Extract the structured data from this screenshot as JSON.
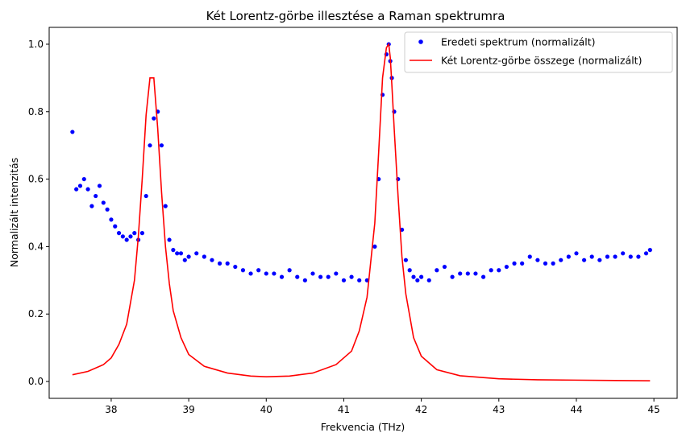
{
  "chart_data": {
    "type": "scatter",
    "title": "Két Lorentz-görbe illesztése a Raman spektrumra",
    "xlabel": "Frekvencia (THz)",
    "ylabel": "Normalizált intenzitás",
    "xlim": [
      37.2,
      45.3
    ],
    "ylim": [
      -0.05,
      1.05
    ],
    "x_ticks": [
      38,
      39,
      40,
      41,
      42,
      43,
      44,
      45
    ],
    "x_tick_labels": [
      "38",
      "39",
      "40",
      "41",
      "42",
      "43",
      "44",
      "45"
    ],
    "y_ticks": [
      0.0,
      0.2,
      0.4,
      0.6,
      0.8,
      1.0
    ],
    "y_tick_labels": [
      "0.0",
      "0.2",
      "0.4",
      "0.6",
      "0.8",
      "1.0"
    ],
    "grid": false,
    "legend_position": "top-right",
    "series": [
      {
        "name": "Eredeti spektrum (normalizált)",
        "kind": "scatter",
        "color": "#0000ff",
        "x": [
          37.5,
          37.55,
          37.6,
          37.65,
          37.7,
          37.75,
          37.8,
          37.85,
          37.9,
          37.95,
          38.0,
          38.05,
          38.1,
          38.15,
          38.2,
          38.25,
          38.3,
          38.35,
          38.4,
          38.45,
          38.5,
          38.55,
          38.6,
          38.65,
          38.7,
          38.75,
          38.8,
          38.85,
          38.9,
          38.95,
          39.0,
          39.1,
          39.2,
          39.3,
          39.4,
          39.5,
          39.6,
          39.7,
          39.8,
          39.9,
          40.0,
          40.1,
          40.2,
          40.3,
          40.4,
          40.5,
          40.6,
          40.7,
          40.8,
          40.9,
          41.0,
          41.1,
          41.2,
          41.3,
          41.4,
          41.45,
          41.5,
          41.55,
          41.58,
          41.6,
          41.62,
          41.65,
          41.7,
          41.75,
          41.8,
          41.85,
          41.9,
          41.95,
          42.0,
          42.1,
          42.2,
          42.3,
          42.4,
          42.5,
          42.6,
          42.7,
          42.8,
          42.9,
          43.0,
          43.1,
          43.2,
          43.3,
          43.4,
          43.5,
          43.6,
          43.7,
          43.8,
          43.9,
          44.0,
          44.1,
          44.2,
          44.3,
          44.4,
          44.5,
          44.6,
          44.7,
          44.8,
          44.9,
          44.95
        ],
        "y": [
          0.74,
          0.57,
          0.58,
          0.6,
          0.57,
          0.52,
          0.55,
          0.58,
          0.53,
          0.51,
          0.48,
          0.46,
          0.44,
          0.43,
          0.42,
          0.43,
          0.44,
          0.42,
          0.44,
          0.55,
          0.7,
          0.78,
          0.8,
          0.7,
          0.52,
          0.42,
          0.39,
          0.38,
          0.38,
          0.36,
          0.37,
          0.38,
          0.37,
          0.36,
          0.35,
          0.35,
          0.34,
          0.33,
          0.32,
          0.33,
          0.32,
          0.32,
          0.31,
          0.33,
          0.31,
          0.3,
          0.32,
          0.31,
          0.31,
          0.32,
          0.3,
          0.31,
          0.3,
          0.3,
          0.4,
          0.6,
          0.85,
          0.97,
          1.0,
          0.95,
          0.9,
          0.8,
          0.6,
          0.45,
          0.36,
          0.33,
          0.31,
          0.3,
          0.31,
          0.3,
          0.33,
          0.34,
          0.31,
          0.32,
          0.32,
          0.32,
          0.31,
          0.33,
          0.33,
          0.34,
          0.35,
          0.35,
          0.37,
          0.36,
          0.35,
          0.35,
          0.36,
          0.37,
          0.38,
          0.36,
          0.37,
          0.36,
          0.37,
          0.37,
          0.38,
          0.37,
          0.37,
          0.38,
          0.39
        ]
      },
      {
        "name": "Két Lorentz-görbe összege (normalizált)",
        "kind": "line",
        "color": "#ff0000",
        "x": [
          37.5,
          37.7,
          37.9,
          38.0,
          38.1,
          38.2,
          38.3,
          38.35,
          38.4,
          38.45,
          38.5,
          38.55,
          38.6,
          38.65,
          38.7,
          38.75,
          38.8,
          38.9,
          39.0,
          39.2,
          39.5,
          39.8,
          40.0,
          40.3,
          40.6,
          40.9,
          41.1,
          41.2,
          41.3,
          41.4,
          41.45,
          41.5,
          41.55,
          41.58,
          41.6,
          41.62,
          41.65,
          41.7,
          41.75,
          41.8,
          41.9,
          42.0,
          42.2,
          42.5,
          43.0,
          43.5,
          44.0,
          44.5,
          44.95
        ],
        "y": [
          0.02,
          0.03,
          0.05,
          0.07,
          0.11,
          0.17,
          0.3,
          0.43,
          0.6,
          0.79,
          0.9,
          0.9,
          0.75,
          0.56,
          0.4,
          0.29,
          0.21,
          0.13,
          0.08,
          0.045,
          0.025,
          0.016,
          0.014,
          0.016,
          0.025,
          0.05,
          0.09,
          0.15,
          0.25,
          0.47,
          0.68,
          0.9,
          0.99,
          1.0,
          0.96,
          0.88,
          0.75,
          0.55,
          0.37,
          0.26,
          0.13,
          0.075,
          0.035,
          0.017,
          0.008,
          0.005,
          0.004,
          0.003,
          0.002
        ]
      }
    ]
  }
}
